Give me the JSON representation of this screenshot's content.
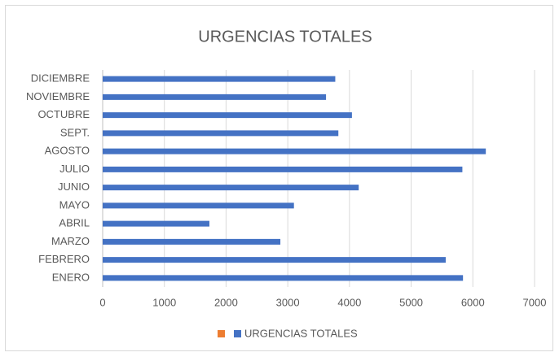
{
  "chart_data": {
    "type": "barh",
    "title": "URGENCIAS TOTALES",
    "categories": [
      "ENERO",
      "FEBRERO",
      "MARZO",
      "ABRIL",
      "MAYO",
      "JUNIO",
      "JULIO",
      "AGOSTO",
      "SEPT.",
      "OCTUBRE",
      "NOVIEMBRE",
      "DICIEMBRE"
    ],
    "series": [
      {
        "name": "URGENCIAS TOTALES",
        "color": "#4472c4",
        "values": [
          5840,
          5560,
          2880,
          1730,
          3100,
          4150,
          5830,
          6210,
          3820,
          4040,
          3620,
          3770
        ]
      }
    ],
    "xlim": [
      0,
      7000
    ],
    "xticks": [
      0,
      1000,
      2000,
      3000,
      4000,
      5000,
      6000,
      7000
    ],
    "grid": true
  }
}
